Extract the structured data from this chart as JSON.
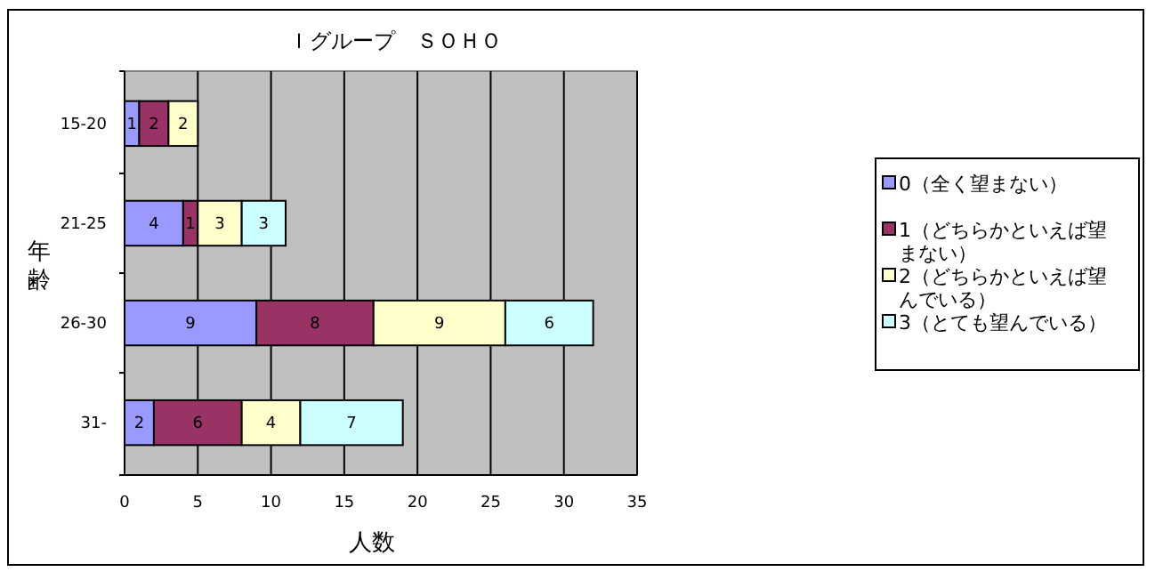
{
  "chart_data": {
    "type": "bar",
    "orientation": "horizontal",
    "stacked": true,
    "title": "Ｉグループ　ＳＯＨＯ",
    "xlabel": "人数",
    "ylabel": "年齢",
    "categories": [
      "15-20",
      "21-25",
      "26-30",
      "31-"
    ],
    "series": [
      {
        "name": "0（全く望まない）",
        "color": "#9999ff",
        "values": [
          1,
          4,
          9,
          2
        ]
      },
      {
        "name": "1（どちらかといえば望まない）",
        "color": "#993366",
        "values": [
          2,
          1,
          8,
          6
        ]
      },
      {
        "name": "2（どちらかといえば望んでいる）",
        "color": "#ffffcc",
        "values": [
          2,
          3,
          9,
          4
        ]
      },
      {
        "name": "3（とても望んでいる）",
        "color": "#ccffff",
        "values": [
          null,
          3,
          6,
          7
        ]
      }
    ],
    "xlim": [
      0,
      35
    ],
    "xticks": [
      0,
      5,
      10,
      15,
      20,
      25,
      30,
      35
    ],
    "grid": "x",
    "legend": "right",
    "data_labels": true
  }
}
